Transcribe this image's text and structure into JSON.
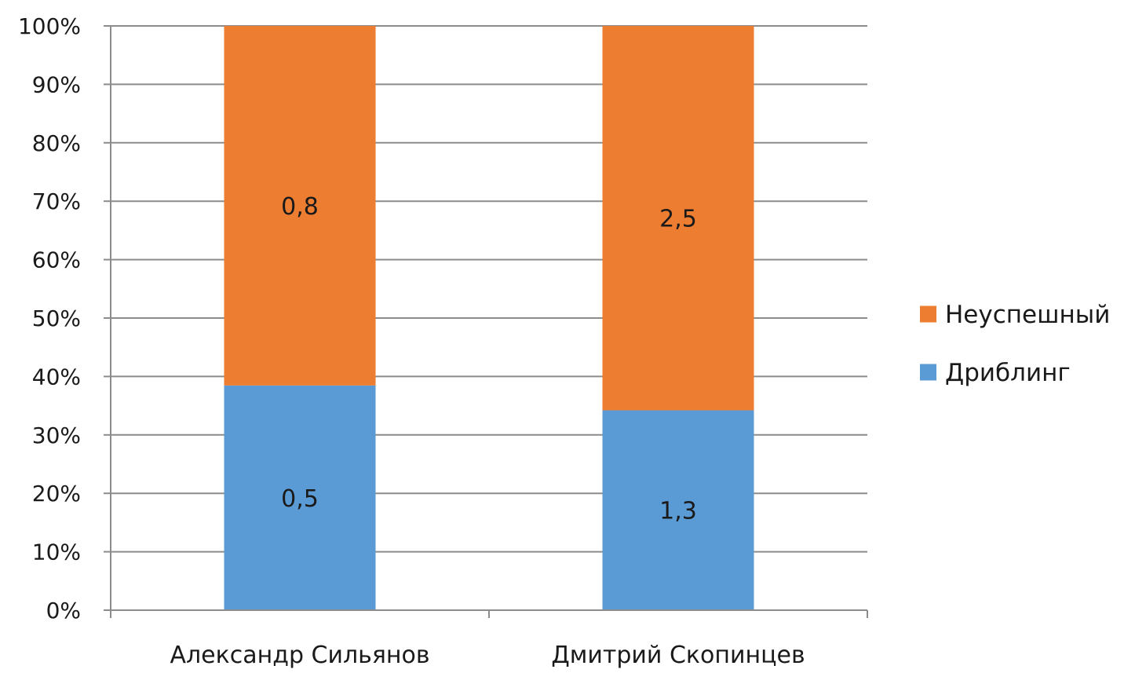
{
  "chart_data": {
    "type": "bar",
    "stacked": true,
    "normalized": true,
    "categories": [
      "Александр Сильянов",
      "Дмитрий Скопинцев"
    ],
    "series": [
      {
        "name": "Дриблинг",
        "values": [
          0.5,
          1.3
        ],
        "labels": [
          "0,5",
          "1,3"
        ],
        "color": "#5b9bd5"
      },
      {
        "name": "Неуспешный",
        "values": [
          0.8,
          2.5
        ],
        "labels": [
          "0,8",
          "2,5"
        ],
        "color": "#ed7d31"
      }
    ],
    "y_ticks": [
      "0%",
      "10%",
      "20%",
      "30%",
      "40%",
      "50%",
      "60%",
      "70%",
      "80%",
      "90%",
      "100%"
    ],
    "ylim": [
      0,
      100
    ],
    "grid": true,
    "legend": {
      "placement": "right",
      "order": [
        "Неуспешный",
        "Дриблинг"
      ]
    }
  }
}
